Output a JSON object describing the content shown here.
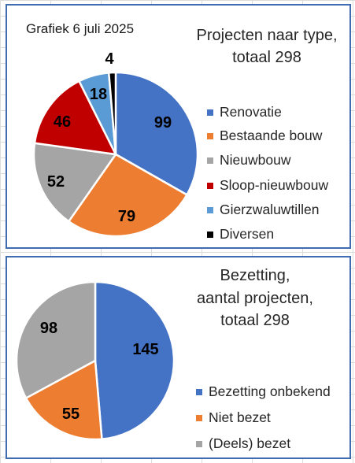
{
  "chart_data": [
    {
      "type": "pie",
      "caption": "Grafiek 6 juli 2025",
      "title": [
        "Projecten naar type,",
        "totaal 298"
      ],
      "categories": [
        "Renovatie",
        "Bestaande bouw",
        "Nieuwbouw",
        "Sloop-nieuwbouw",
        "Gierzwaluwtillen",
        "Diversen"
      ],
      "values": [
        99,
        79,
        52,
        46,
        18,
        4
      ],
      "colors": [
        "#4472c4",
        "#ed7d31",
        "#a5a5a5",
        "#c00000",
        "#5b9bd5",
        "#000000"
      ],
      "legend_position": "right"
    },
    {
      "type": "pie",
      "title": [
        "Bezetting,",
        "aantal projecten,",
        "totaal 298"
      ],
      "categories": [
        "Bezetting onbekend",
        "Niet bezet",
        "(Deels) bezet"
      ],
      "values": [
        145,
        55,
        98
      ],
      "colors": [
        "#4472c4",
        "#ed7d31",
        "#a5a5a5"
      ],
      "legend_position": "bottom-right"
    }
  ]
}
